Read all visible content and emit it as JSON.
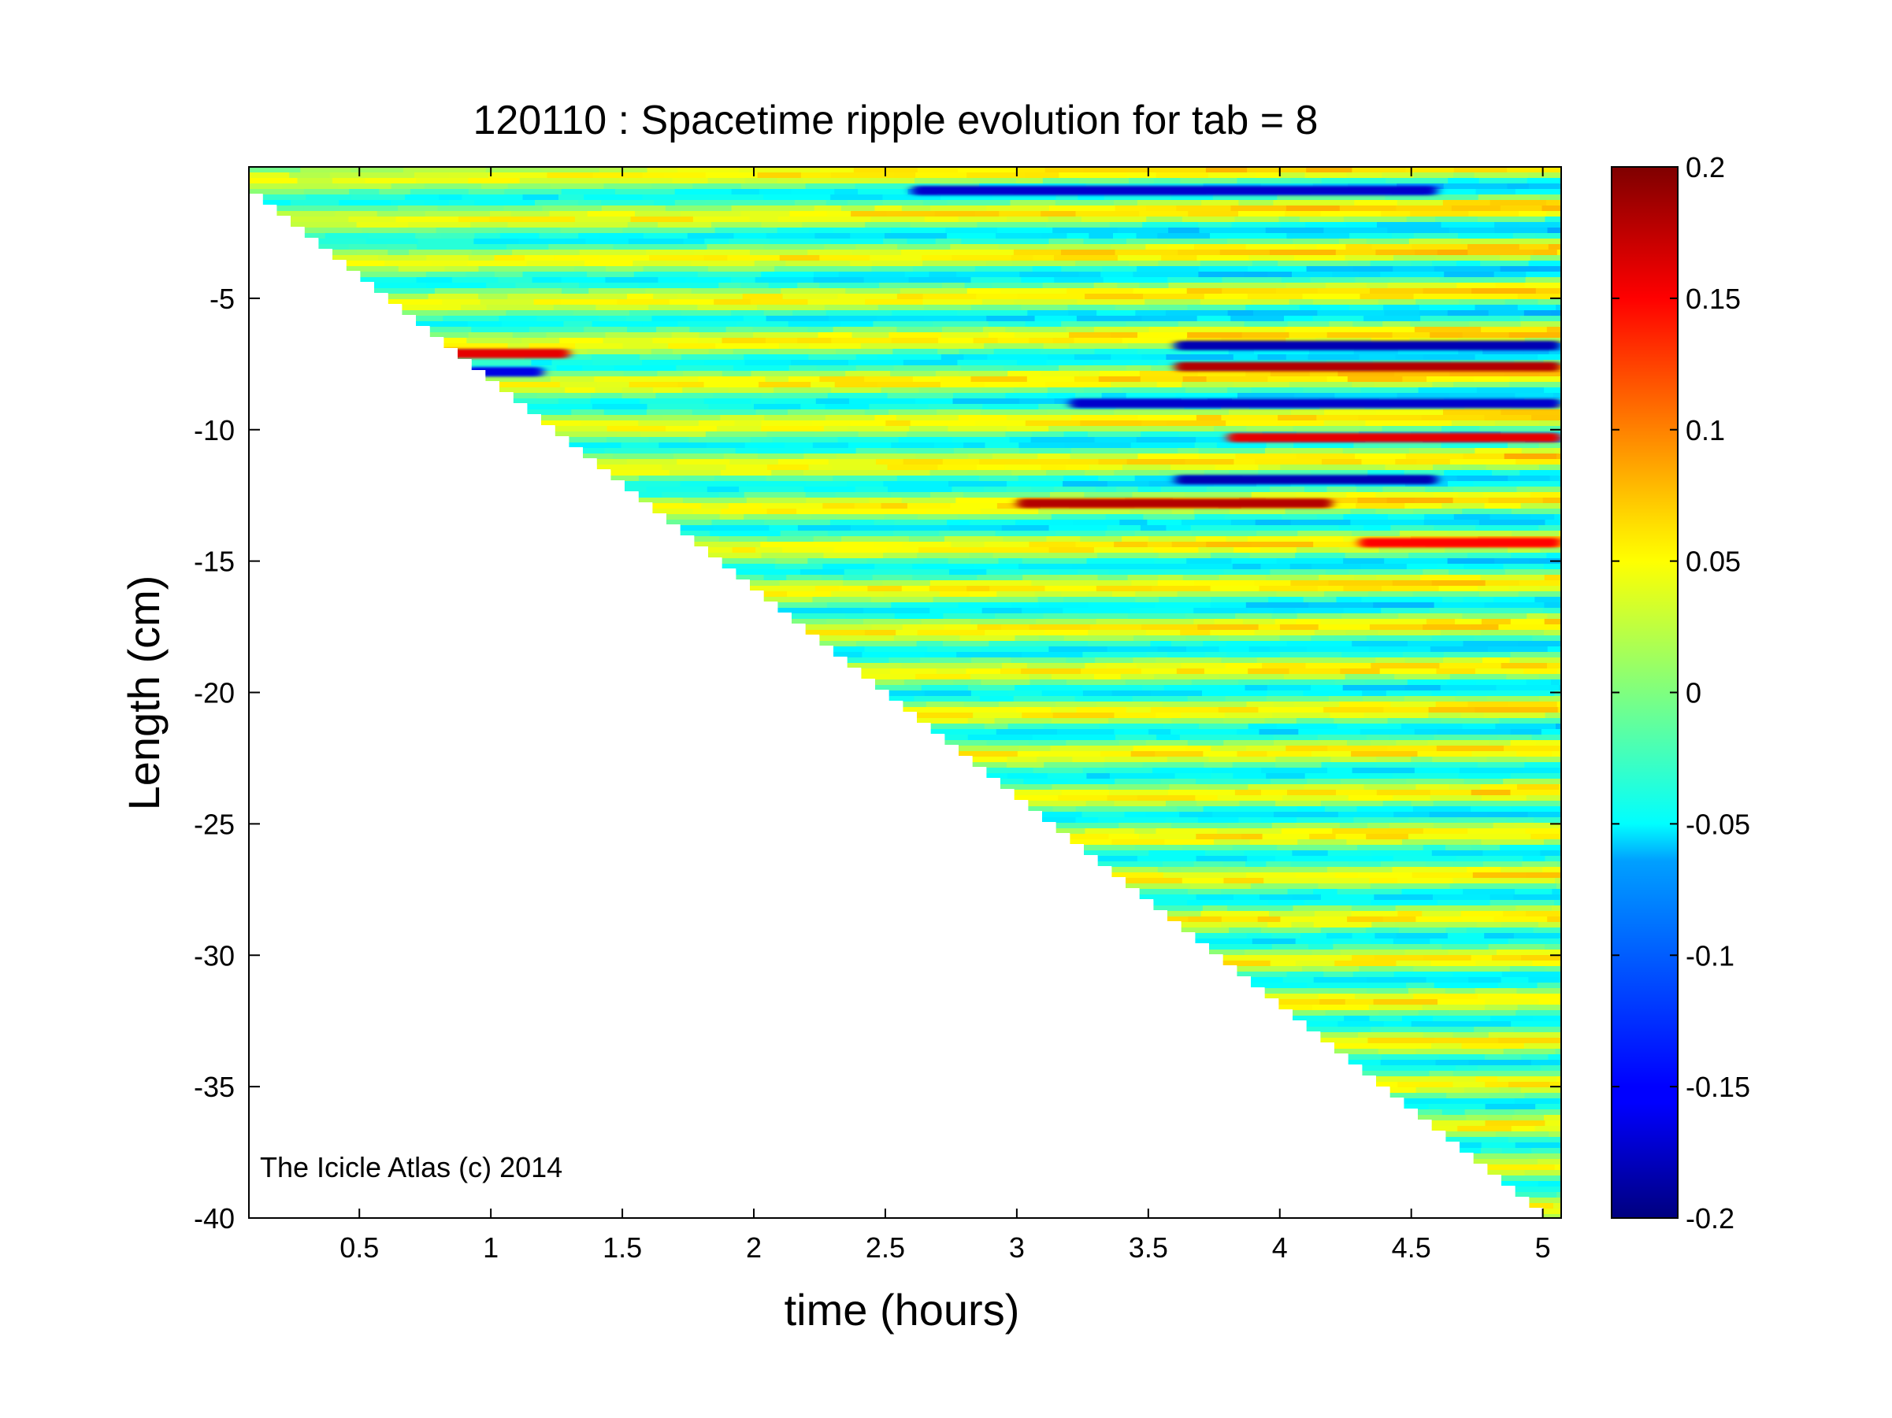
{
  "chart_data": {
    "type": "heatmap",
    "title": "120110 : Spacetime ripple evolution for tab = 8",
    "xlabel": "time (hours)",
    "ylabel": "Length (cm)",
    "xlim": [
      0.08,
      5.07
    ],
    "ylim": [
      -40,
      0
    ],
    "x_ticks": [
      0.5,
      1,
      1.5,
      2,
      2.5,
      3,
      3.5,
      4,
      4.5,
      5
    ],
    "y_ticks": [
      -5,
      -10,
      -15,
      -20,
      -25,
      -30,
      -35,
      -40
    ],
    "colorbar": {
      "colormap": "jet",
      "clim": [
        -0.2,
        0.2
      ],
      "ticks": [
        0.2,
        0.15,
        0.1,
        0.05,
        0,
        -0.05,
        -0.1,
        -0.15,
        -0.2
      ]
    },
    "data_boundary": {
      "description_points": [
        [
          0.08,
          -0.6
        ],
        [
          5.05,
          -40
        ]
      ]
    },
    "features": [
      {
        "t_start": 0.8,
        "t_end": 1.3,
        "length": -7.1,
        "value": 0.16
      },
      {
        "t_start": 0.9,
        "t_end": 1.2,
        "length": -7.8,
        "value": -0.16
      },
      {
        "t_start": 2.6,
        "t_end": 4.6,
        "length": -0.9,
        "value": -0.17
      },
      {
        "t_start": 3.6,
        "t_end": 5.07,
        "length": -6.8,
        "value": -0.18
      },
      {
        "t_start": 3.6,
        "t_end": 5.07,
        "length": -7.6,
        "value": 0.18
      },
      {
        "t_start": 3.2,
        "t_end": 5.07,
        "length": -9.0,
        "value": -0.17
      },
      {
        "t_start": 3.8,
        "t_end": 5.07,
        "length": -10.3,
        "value": 0.16
      },
      {
        "t_start": 3.6,
        "t_end": 4.6,
        "length": -11.9,
        "value": -0.18
      },
      {
        "t_start": 3.0,
        "t_end": 4.2,
        "length": -12.8,
        "value": 0.18
      },
      {
        "t_start": 4.3,
        "t_end": 5.07,
        "length": -14.3,
        "value": 0.15
      }
    ]
  },
  "annotation": "The Icicle Atlas (c) 2014"
}
